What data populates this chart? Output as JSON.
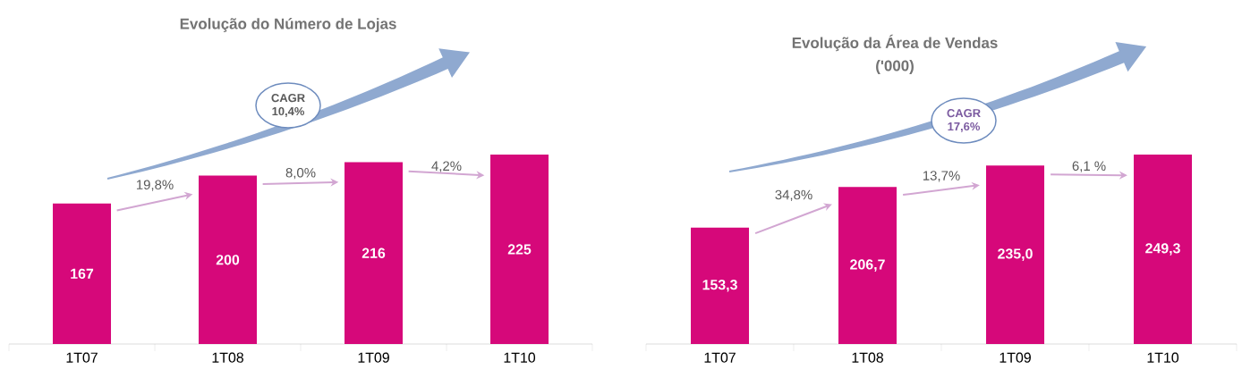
{
  "chart_data": [
    {
      "type": "bar",
      "title": "Evolução do Número de Lojas",
      "categories": [
        "1T07",
        "1T08",
        "1T09",
        "1T10"
      ],
      "values": [
        167,
        200,
        216,
        225
      ],
      "value_labels": [
        "167",
        "200",
        "216",
        "225"
      ],
      "color": "#d6087a",
      "annotations": [
        "19,8%",
        "8,0%",
        "4,2%",
        "CAGR 10,4%"
      ]
    },
    {
      "type": "bar",
      "title": "Evolução da Área de Vendas",
      "subtitle": "('000)",
      "categories": [
        "1T07",
        "1T08",
        "1T09",
        "1T10"
      ],
      "values": [
        153.3,
        206.7,
        235.0,
        249.3
      ],
      "value_labels": [
        "153,3",
        "206,7",
        "235,0",
        "249,3"
      ],
      "color": "#d6087a",
      "annotations": [
        "34,8%",
        "13,7%",
        "6,1 %",
        "CAGR 17,6%"
      ]
    }
  ]
}
